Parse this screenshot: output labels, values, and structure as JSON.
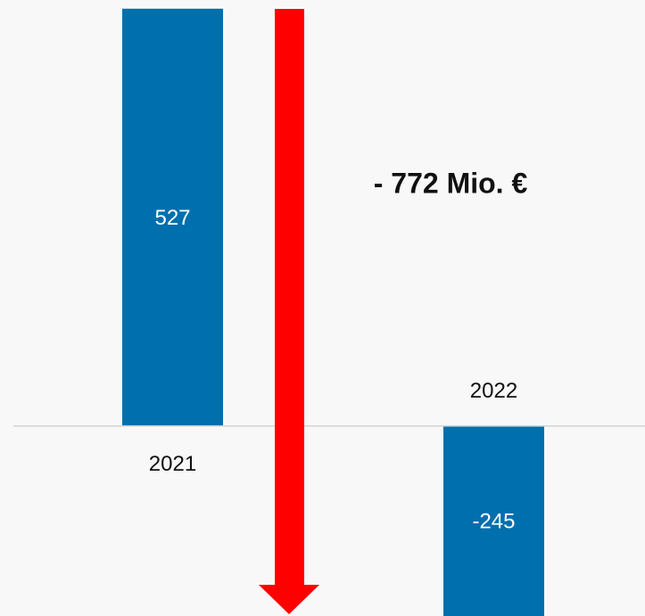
{
  "chart_data": {
    "type": "bar",
    "categories": [
      "2021",
      "2022"
    ],
    "values": [
      527,
      -245
    ],
    "color": "#006fad",
    "ylim": [
      -240,
      538
    ],
    "annotation": "- 772 Mio. €"
  }
}
